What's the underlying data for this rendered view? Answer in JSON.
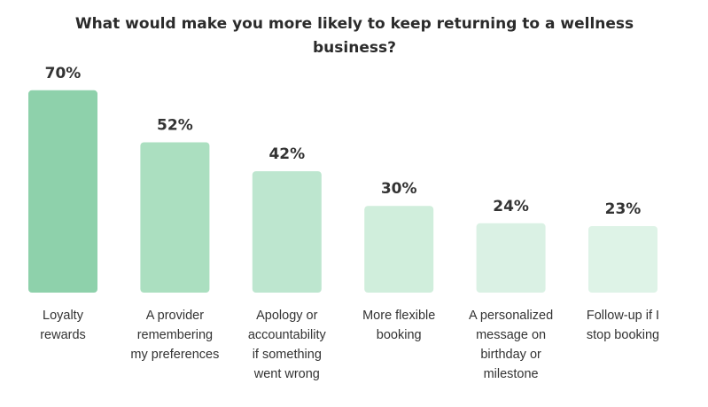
{
  "chart_data": {
    "type": "bar",
    "title": "What would make you more likely to keep returning to a wellness business?",
    "categories": [
      [
        "Loyalty",
        "rewards"
      ],
      [
        "A provider",
        "remembering",
        "my preferences"
      ],
      [
        "Apology or",
        "accountability",
        "if something",
        "went wrong"
      ],
      [
        "More flexible",
        "booking"
      ],
      [
        "A personalized",
        "message on",
        "birthday or",
        "milestone"
      ],
      [
        "Follow-up if I",
        "stop booking"
      ]
    ],
    "values": [
      70,
      52,
      42,
      30,
      24,
      23
    ],
    "value_labels": [
      "70%",
      "52%",
      "42%",
      "30%",
      "24%",
      "23%"
    ],
    "colors": [
      "#8ed1ab",
      "#abdfc0",
      "#bde6cf",
      "#d0eedc",
      "#daf1e4",
      "#def3e7"
    ],
    "unit": "%",
    "xlabel": "",
    "ylabel": "",
    "ylim": [
      0,
      100
    ],
    "grid": false,
    "legend": "none"
  }
}
